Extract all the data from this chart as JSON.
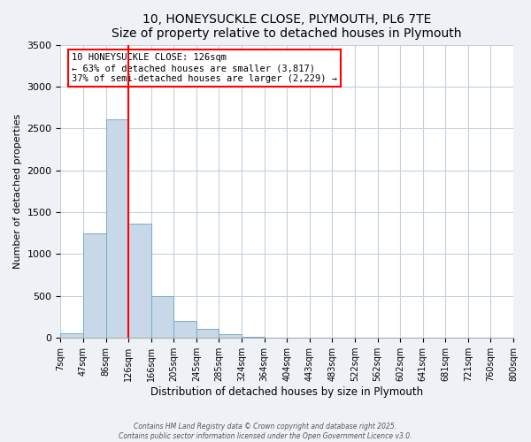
{
  "title": "10, HONEYSUCKLE CLOSE, PLYMOUTH, PL6 7TE",
  "subtitle": "Size of property relative to detached houses in Plymouth",
  "xlabel": "Distribution of detached houses by size in Plymouth",
  "ylabel": "Number of detached properties",
  "bin_labels": [
    "7sqm",
    "47sqm",
    "86sqm",
    "126sqm",
    "166sqm",
    "205sqm",
    "245sqm",
    "285sqm",
    "324sqm",
    "364sqm",
    "404sqm",
    "443sqm",
    "483sqm",
    "522sqm",
    "562sqm",
    "602sqm",
    "641sqm",
    "681sqm",
    "721sqm",
    "760sqm",
    "800sqm"
  ],
  "bar_values": [
    50,
    1250,
    2610,
    1360,
    500,
    200,
    110,
    45,
    10,
    2,
    0,
    0,
    0,
    0,
    0,
    0,
    0,
    0,
    0,
    0
  ],
  "bar_color": "#c8d8e8",
  "bar_edge_color": "#7aaacc",
  "vline_x_label_index": 3,
  "vline_color": "red",
  "annotation_title": "10 HONEYSUCKLE CLOSE: 126sqm",
  "annotation_line2": "← 63% of detached houses are smaller (3,817)",
  "annotation_line3": "37% of semi-detached houses are larger (2,229) →",
  "annotation_box_color": "white",
  "annotation_box_edge_color": "red",
  "ylim": [
    0,
    3500
  ],
  "yticks": [
    0,
    500,
    1000,
    1500,
    2000,
    2500,
    3000,
    3500
  ],
  "footer_line1": "Contains HM Land Registry data © Crown copyright and database right 2025.",
  "footer_line2": "Contains public sector information licensed under the Open Government Licence v3.0.",
  "background_color": "#eef2f7",
  "plot_background": "white",
  "grid_color": "#c5d0dc"
}
